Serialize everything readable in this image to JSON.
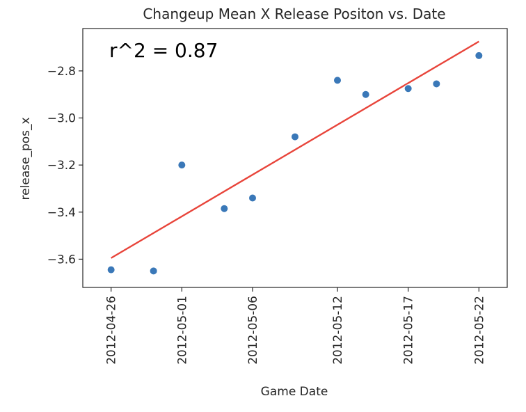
{
  "chart_data": {
    "type": "scatter",
    "title": "Changeup Mean X Release Positon vs. Date",
    "xlabel": "Game Date",
    "ylabel": "release_pos_x",
    "annotation": "r^2 = 0.87",
    "x_ticks": [
      "2012-04-26",
      "2012-05-01",
      "2012-05-06",
      "2012-05-12",
      "2012-05-17",
      "2012-05-22"
    ],
    "y_ticks": [
      -3.6,
      -3.4,
      -3.2,
      -3.0,
      -2.8
    ],
    "y_tick_labels": [
      "−3.6",
      "−3.4",
      "−3.2",
      "−3.0",
      "−2.8"
    ],
    "xlim": [
      "2012-04-24",
      "2012-05-24"
    ],
    "ylim": [
      -3.72,
      -2.62
    ],
    "grid": false,
    "points": [
      {
        "x": "2012-04-26",
        "y": -3.645
      },
      {
        "x": "2012-04-29",
        "y": -3.65
      },
      {
        "x": "2012-05-01",
        "y": -3.2
      },
      {
        "x": "2012-05-04",
        "y": -3.385
      },
      {
        "x": "2012-05-06",
        "y": -3.34
      },
      {
        "x": "2012-05-09",
        "y": -3.08
      },
      {
        "x": "2012-05-12",
        "y": -2.84
      },
      {
        "x": "2012-05-14",
        "y": -2.9
      },
      {
        "x": "2012-05-17",
        "y": -2.875
      },
      {
        "x": "2012-05-19",
        "y": -2.855
      },
      {
        "x": "2012-05-22",
        "y": -2.735
      }
    ],
    "trendline": {
      "start": {
        "x": "2012-04-26",
        "y": -3.595
      },
      "end": {
        "x": "2012-05-22",
        "y": -2.675
      }
    },
    "colors": {
      "points": "#3a78b8",
      "trendline": "#e8443a",
      "axes": "#262626"
    }
  }
}
